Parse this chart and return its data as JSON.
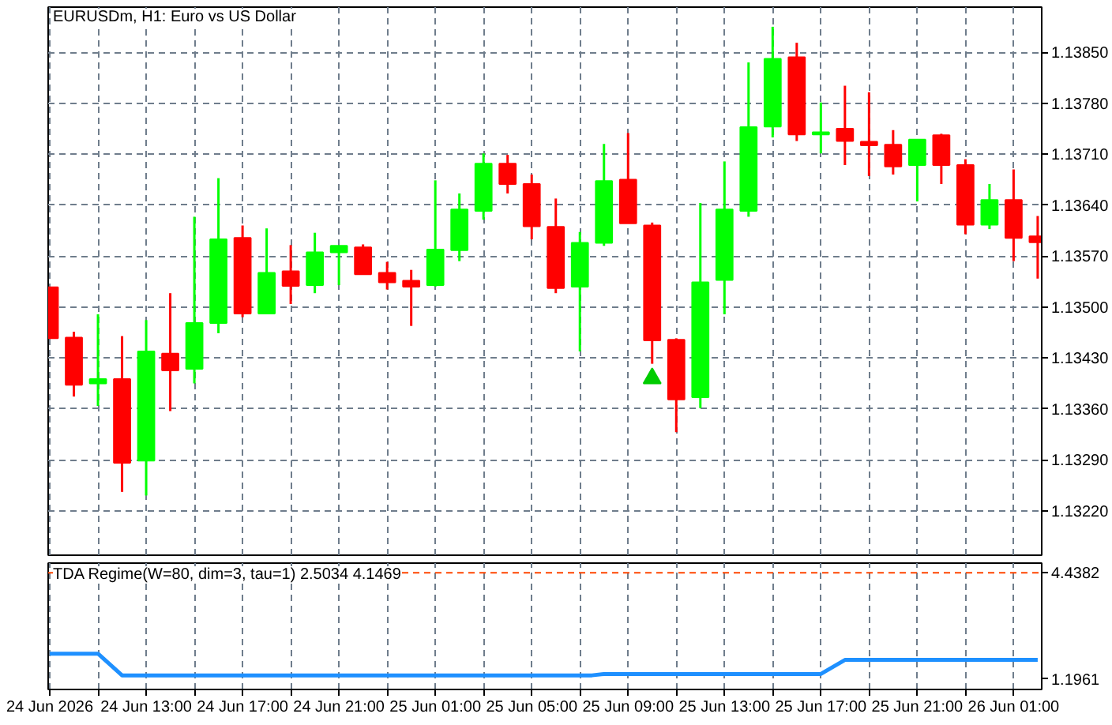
{
  "chart_data": [
    {
      "type": "candlestick",
      "title": "EURUSDm, H1:  Euro vs US Dollar",
      "x": [
        "2026-06-24T09:00",
        "2026-06-24T10:00",
        "2026-06-24T11:00",
        "2026-06-24T12:00",
        "2026-06-24T13:00",
        "2026-06-24T14:00",
        "2026-06-24T15:00",
        "2026-06-24T16:00",
        "2026-06-24T17:00",
        "2026-06-24T18:00",
        "2026-06-24T19:00",
        "2026-06-24T20:00",
        "2026-06-24T21:00",
        "2026-06-24T22:00",
        "2026-06-24T23:00",
        "2026-06-25T00:00",
        "2026-06-25T01:00",
        "2026-06-25T02:00",
        "2026-06-25T03:00",
        "2026-06-25T04:00",
        "2026-06-25T05:00",
        "2026-06-25T06:00",
        "2026-06-25T07:00",
        "2026-06-25T08:00",
        "2026-06-25T09:00",
        "2026-06-25T10:00",
        "2026-06-25T11:00",
        "2026-06-25T12:00",
        "2026-06-25T13:00",
        "2026-06-25T14:00",
        "2026-06-25T15:00",
        "2026-06-25T16:00",
        "2026-06-25T17:00",
        "2026-06-25T18:00",
        "2026-06-25T19:00",
        "2026-06-25T20:00",
        "2026-06-25T21:00",
        "2026-06-25T22:00",
        "2026-06-25T23:00",
        "2026-06-26T00:00",
        "2026-06-26T01:00",
        "2026-06-26T02:00"
      ],
      "ohlc": [
        [
          1.13527,
          1.13527,
          1.13457,
          1.13457
        ],
        [
          1.13458,
          1.13466,
          1.13377,
          1.13393
        ],
        [
          1.13395,
          1.1349,
          1.13364,
          1.13401
        ],
        [
          1.13401,
          1.1346,
          1.13246,
          1.13286
        ],
        [
          1.13289,
          1.13482,
          1.13241,
          1.13439
        ],
        [
          1.13436,
          1.13519,
          1.13357,
          1.13413
        ],
        [
          1.13415,
          1.13624,
          1.13395,
          1.13478
        ],
        [
          1.13478,
          1.13677,
          1.13464,
          1.13593
        ],
        [
          1.13595,
          1.13612,
          1.13486,
          1.13491
        ],
        [
          1.13491,
          1.13608,
          1.13491,
          1.13547
        ],
        [
          1.13549,
          1.13585,
          1.13504,
          1.13529
        ],
        [
          1.1353,
          1.13602,
          1.13519,
          1.13575
        ],
        [
          1.13575,
          1.13584,
          1.1353,
          1.13584
        ],
        [
          1.13582,
          1.13586,
          1.13545,
          1.13545
        ],
        [
          1.13547,
          1.13562,
          1.13524,
          1.13534
        ],
        [
          1.13536,
          1.13551,
          1.13474,
          1.13528
        ],
        [
          1.1353,
          1.13674,
          1.13528,
          1.13579
        ],
        [
          1.13578,
          1.13656,
          1.13563,
          1.13634
        ],
        [
          1.13632,
          1.13711,
          1.1362,
          1.13697
        ],
        [
          1.13697,
          1.13709,
          1.13656,
          1.13669
        ],
        [
          1.13669,
          1.13682,
          1.13593,
          1.13611
        ],
        [
          1.1361,
          1.13649,
          1.13519,
          1.13526
        ],
        [
          1.13528,
          1.13603,
          1.13439,
          1.13588
        ],
        [
          1.13588,
          1.13724,
          1.13584,
          1.13673
        ],
        [
          1.13675,
          1.13739,
          1.13615,
          1.13615
        ],
        [
          1.13612,
          1.13616,
          1.13422,
          1.13454
        ],
        [
          1.13455,
          1.13457,
          1.13328,
          1.13373
        ],
        [
          1.13376,
          1.13643,
          1.13361,
          1.13534
        ],
        [
          1.13537,
          1.137,
          1.1349,
          1.13634
        ],
        [
          1.13632,
          1.13836,
          1.13624,
          1.13747
        ],
        [
          1.13748,
          1.13885,
          1.13733,
          1.13841
        ],
        [
          1.13843,
          1.13863,
          1.13728,
          1.13737
        ],
        [
          1.13737,
          1.13781,
          1.13711,
          1.1374
        ],
        [
          1.13745,
          1.13804,
          1.13695,
          1.13728
        ],
        [
          1.13727,
          1.13795,
          1.1368,
          1.13722
        ],
        [
          1.13723,
          1.13743,
          1.13682,
          1.13693
        ],
        [
          1.13695,
          1.1373,
          1.13645,
          1.1373
        ],
        [
          1.13736,
          1.13738,
          1.13669,
          1.13695
        ],
        [
          1.13695,
          1.13703,
          1.136,
          1.13613
        ],
        [
          1.13613,
          1.13669,
          1.13607,
          1.13647
        ],
        [
          1.13647,
          1.13689,
          1.13563,
          1.13595
        ],
        [
          1.13597,
          1.13625,
          1.13539,
          1.13589
        ]
      ],
      "colors": [
        "#ff0000",
        "#ff0000",
        "#00ff00",
        "#ff0000",
        "#00ff00",
        "#ff0000",
        "#00ff00",
        "#00ff00",
        "#ff0000",
        "#00ff00",
        "#ff0000",
        "#00ff00",
        "#00ff00",
        "#ff0000",
        "#ff0000",
        "#ff0000",
        "#00ff00",
        "#00ff00",
        "#00ff00",
        "#ff0000",
        "#ff0000",
        "#ff0000",
        "#00ff00",
        "#00ff00",
        "#ff0000",
        "#ff0000",
        "#ff0000",
        "#00ff00",
        "#00ff00",
        "#00ff00",
        "#00ff00",
        "#ff0000",
        "#00ff00",
        "#ff0000",
        "#ff0000",
        "#ff0000",
        "#00ff00",
        "#ff0000",
        "#ff0000",
        "#00ff00",
        "#ff0000",
        "#ff0000"
      ],
      "series": [
        {
          "type": "scatter",
          "x": [
            "2026-06-25T10:00"
          ],
          "values": [
            1.13402
          ],
          "color": "#00cc00",
          "marker": "triangle"
        }
      ],
      "xlim": [
        "2026-06-24T08:56",
        "2026-06-26T02:10"
      ],
      "ylim": [
        1.13159,
        1.13912
      ],
      "yticks": [
        {
          "value": 1.1322,
          "label": "1.13220"
        },
        {
          "value": 1.1329,
          "label": "1.13290"
        },
        {
          "value": 1.1336,
          "label": "1.13360"
        },
        {
          "value": 1.1343,
          "label": "1.13430"
        },
        {
          "value": 1.135,
          "label": "1.13500"
        },
        {
          "value": 1.1357,
          "label": "1.13570"
        },
        {
          "value": 1.1364,
          "label": "1.13640"
        },
        {
          "value": 1.1371,
          "label": "1.13710"
        },
        {
          "value": 1.1378,
          "label": "1.13780"
        },
        {
          "value": 1.1385,
          "label": "1.13850"
        }
      ],
      "xticks": [
        {
          "value": "2026-06-24T09:00",
          "label": null
        },
        {
          "value": "2026-06-24T11:00",
          "label": null
        },
        {
          "value": "2026-06-24T13:00",
          "label": null
        },
        {
          "value": "2026-06-24T15:00",
          "label": null
        },
        {
          "value": "2026-06-24T17:00",
          "label": null
        },
        {
          "value": "2026-06-24T19:00",
          "label": null
        },
        {
          "value": "2026-06-24T21:00",
          "label": null
        },
        {
          "value": "2026-06-24T23:00",
          "label": null
        },
        {
          "value": "2026-06-25T01:00",
          "label": null
        },
        {
          "value": "2026-06-25T03:00",
          "label": null
        },
        {
          "value": "2026-06-25T05:00",
          "label": null
        },
        {
          "value": "2026-06-25T07:00",
          "label": null
        },
        {
          "value": "2026-06-25T09:00",
          "label": null
        },
        {
          "value": "2026-06-25T11:00",
          "label": null
        },
        {
          "value": "2026-06-25T13:00",
          "label": null
        },
        {
          "value": "2026-06-25T15:00",
          "label": null
        },
        {
          "value": "2026-06-25T17:00",
          "label": null
        },
        {
          "value": "2026-06-25T19:00",
          "label": null
        },
        {
          "value": "2026-06-25T21:00",
          "label": null
        },
        {
          "value": "2026-06-25T23:00",
          "label": null
        },
        {
          "value": "2026-06-26T01:00",
          "label": null
        }
      ],
      "tick_labels": "y",
      "grid": true
    },
    {
      "type": "line",
      "title": "TDA Regime(W=80, dim=3, tau=1) 2.5034 4.1469",
      "x": [
        "2026-06-24T09:00",
        "2026-06-24T11:00",
        "2026-06-24T12:00",
        "2026-06-25T07:30",
        "2026-06-25T08:00",
        "2026-06-25T17:00",
        "2026-06-25T18:00",
        "2026-06-26T02:00"
      ],
      "values": [
        1.97,
        1.97,
        1.31,
        1.31,
        1.35,
        1.35,
        1.78,
        1.78
      ],
      "color": "#1e90ff",
      "xlim": [
        "2026-06-24T08:56",
        "2026-06-26T02:10"
      ],
      "ylim": [
        0.88,
        4.73
      ],
      "yticks": [
        1.1961,
        4.4382
      ],
      "xticks": [
        {
          "value": "2026-06-24T09:00",
          "label": "24 Jun 2026"
        },
        {
          "value": "2026-06-24T11:00",
          "label": null
        },
        {
          "value": "2026-06-24T13:00",
          "label": "24 Jun 13:00"
        },
        {
          "value": "2026-06-24T15:00",
          "label": null
        },
        {
          "value": "2026-06-24T17:00",
          "label": "24 Jun 17:00"
        },
        {
          "value": "2026-06-24T19:00",
          "label": null
        },
        {
          "value": "2026-06-24T21:00",
          "label": "24 Jun 21:00"
        },
        {
          "value": "2026-06-24T23:00",
          "label": null
        },
        {
          "value": "2026-06-25T01:00",
          "label": "25 Jun 01:00"
        },
        {
          "value": "2026-06-25T03:00",
          "label": null
        },
        {
          "value": "2026-06-25T05:00",
          "label": "25 Jun 05:00"
        },
        {
          "value": "2026-06-25T07:00",
          "label": null
        },
        {
          "value": "2026-06-25T09:00",
          "label": "25 Jun 09:00"
        },
        {
          "value": "2026-06-25T11:00",
          "label": null
        },
        {
          "value": "2026-06-25T13:00",
          "label": "25 Jun 13:00"
        },
        {
          "value": "2026-06-25T15:00",
          "label": null
        },
        {
          "value": "2026-06-25T17:00",
          "label": "25 Jun 17:00"
        },
        {
          "value": "2026-06-25T19:00",
          "label": null
        },
        {
          "value": "2026-06-25T21:00",
          "label": "25 Jun 21:00"
        },
        {
          "value": "2026-06-25T23:00",
          "label": null
        },
        {
          "value": "2026-06-26T01:00",
          "label": "26 Jun 01:00"
        }
      ],
      "ref_lines": [
        {
          "axis": "y",
          "value": 4.4382,
          "color": "#ff4500",
          "line_style": "dashed"
        }
      ],
      "grid": "x"
    }
  ]
}
